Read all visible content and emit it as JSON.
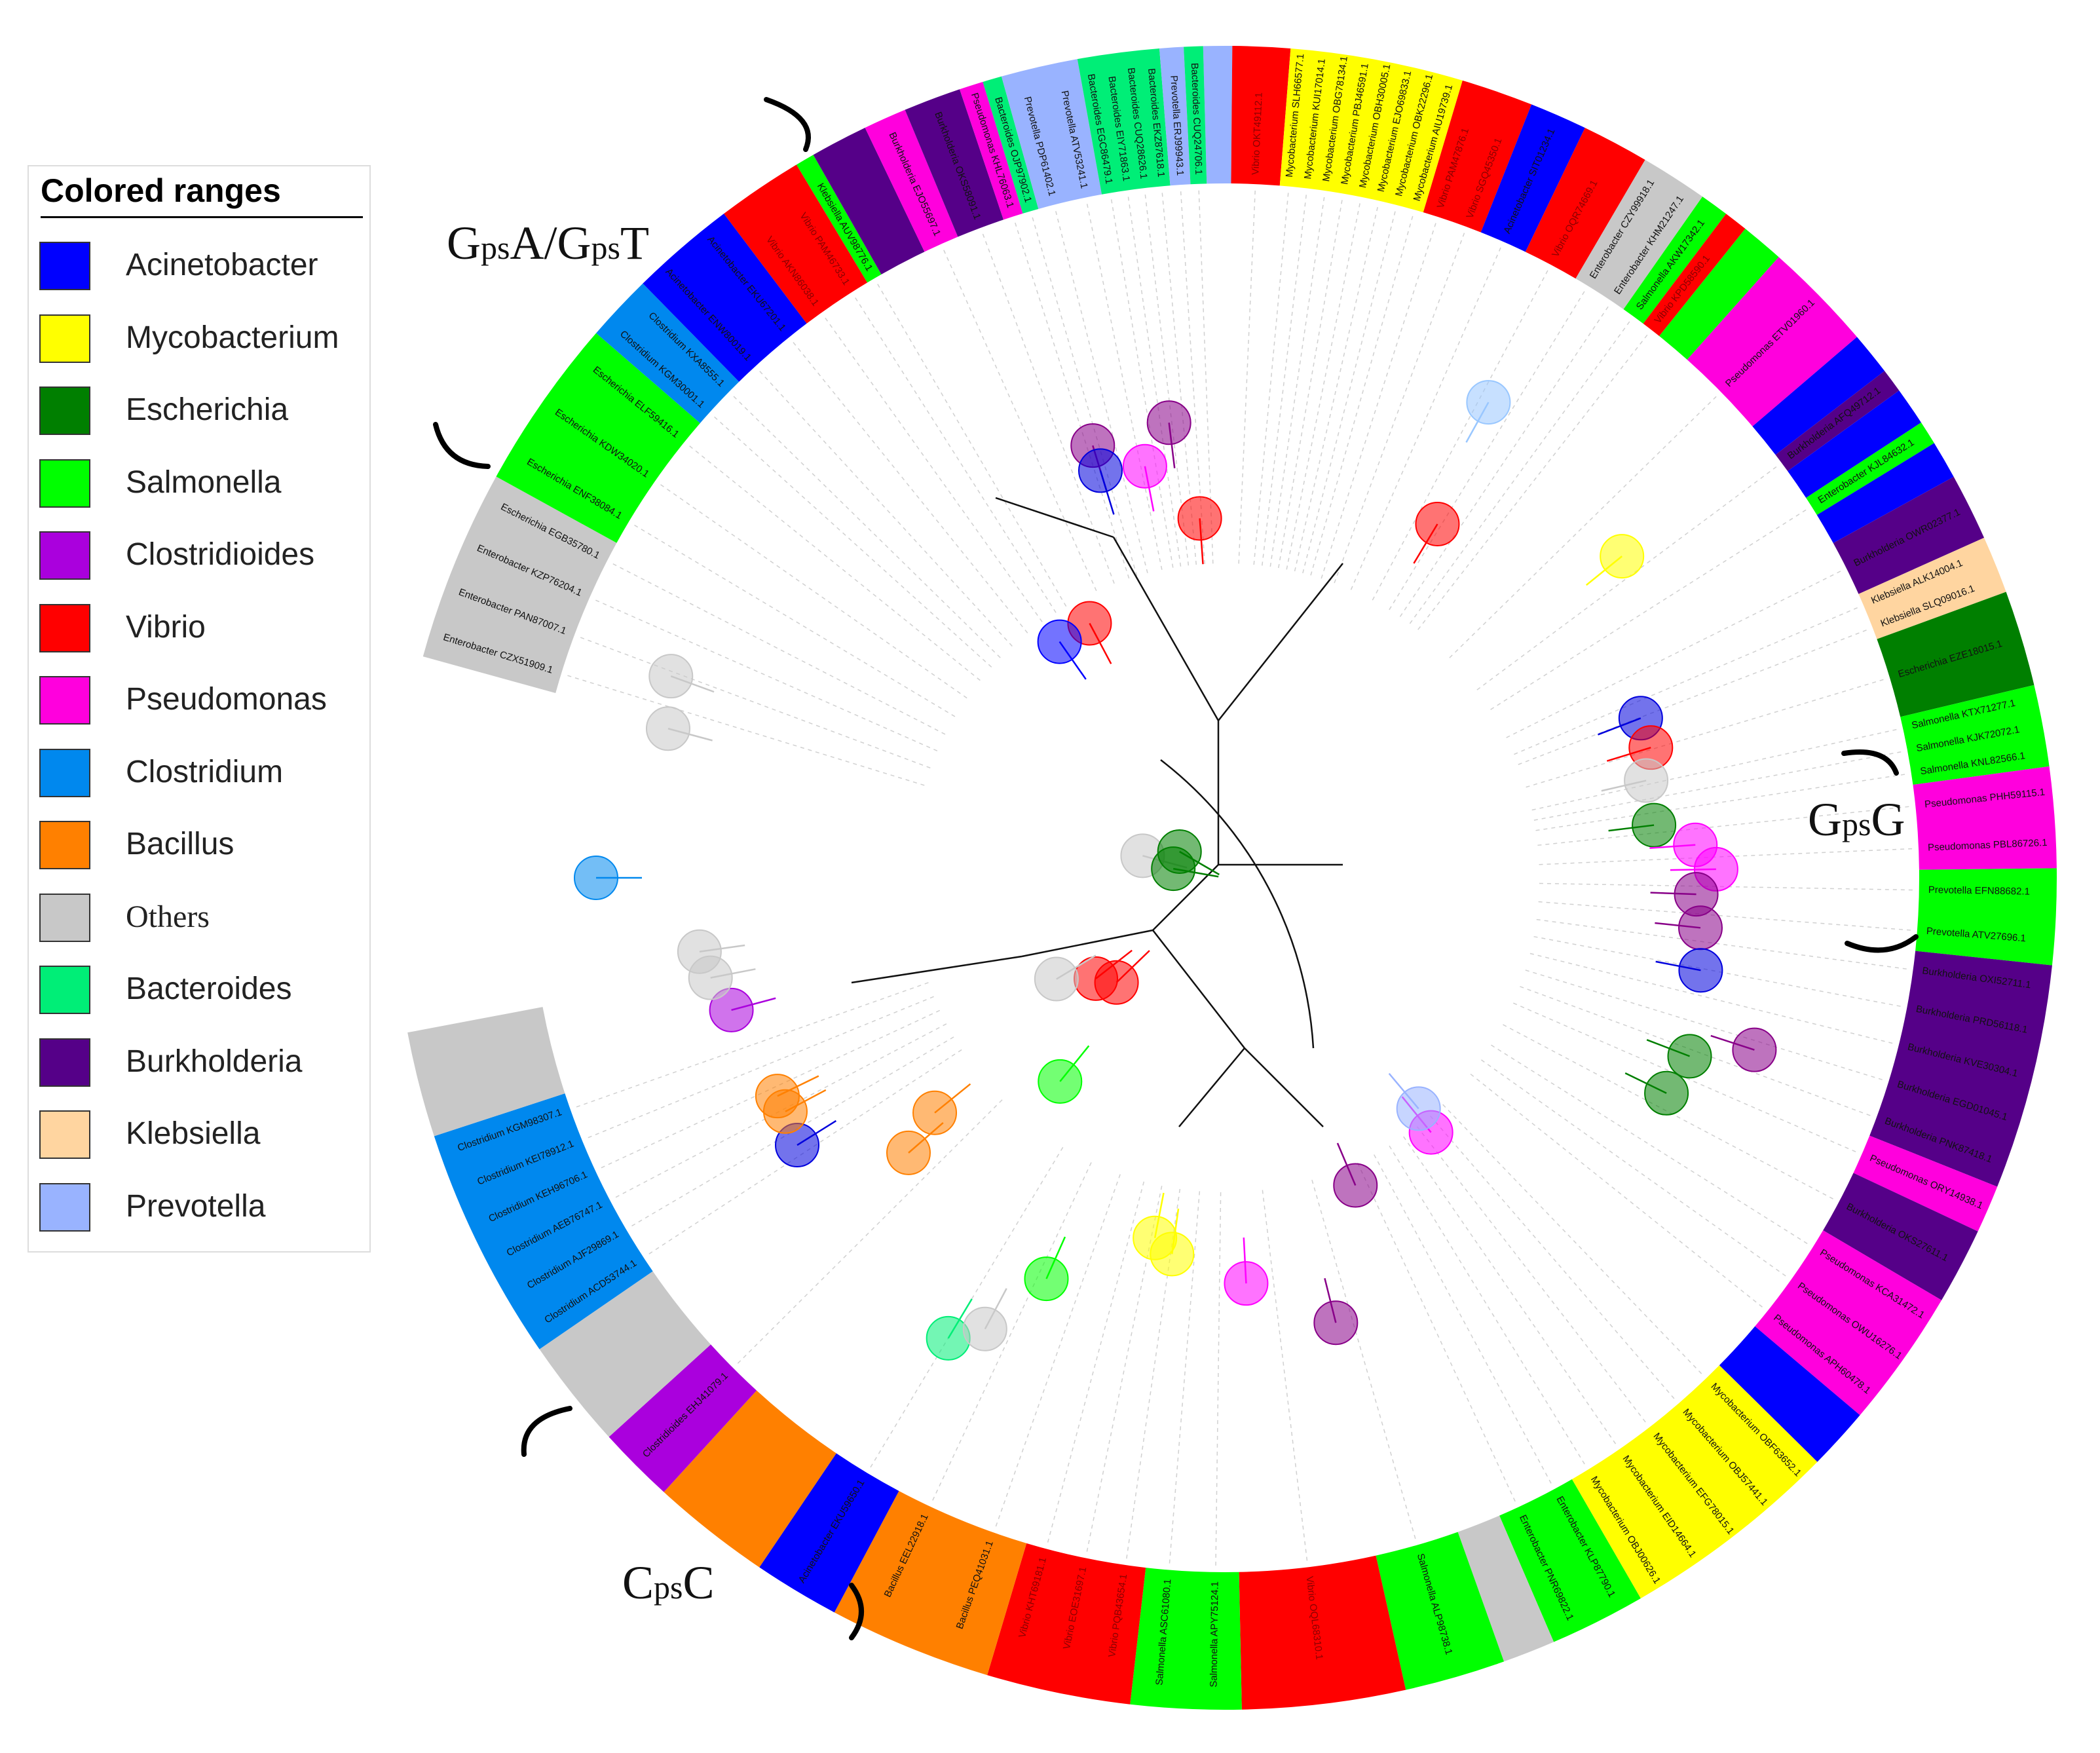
{
  "legend": {
    "title": "Colored ranges",
    "items": [
      {
        "label": "Acinetobacter",
        "color": "#0000ff"
      },
      {
        "label": "Mycobacterium",
        "color": "#ffff00"
      },
      {
        "label": "Escherichia",
        "color": "#007f00"
      },
      {
        "label": "Salmonella",
        "color": "#00ff00"
      },
      {
        "label": "Clostridioides",
        "color": "#aa00dd"
      },
      {
        "label": "Vibrio",
        "color": "#ff0000"
      },
      {
        "label": "Pseudomonas",
        "color": "#ff00dd"
      },
      {
        "label": "Clostridium",
        "color": "#0088ee"
      },
      {
        "label": "Bacillus",
        "color": "#ff8000"
      },
      {
        "label": "Others",
        "color": "#c8c8c8"
      },
      {
        "label": "Bacteroides",
        "color": "#00ee77"
      },
      {
        "label": "Burkholderia",
        "color": "#550088"
      },
      {
        "label": "Klebsiella",
        "color": "#ffd5a0"
      },
      {
        "label": "Prevotella",
        "color": "#99b3ff"
      }
    ]
  },
  "groups": {
    "gpsA_gpsT": {
      "main1": "G",
      "sub1": "ps",
      "main2": "A/G",
      "sub2": "ps",
      "main3": "T"
    },
    "gpsG": {
      "main1": "G",
      "sub1": "ps",
      "main2": "G"
    },
    "cpsC": {
      "main1": "C",
      "sub1": "ps",
      "main2": "C"
    }
  },
  "ring": [
    {
      "genus": "Prevotella",
      "color": "#99b3ff",
      "span": 1.2,
      "labels": []
    },
    {
      "genus": "Vibrio",
      "color": "#ff0000",
      "span": 2.4,
      "labels": [
        "Vibrio OKT49112.1"
      ]
    },
    {
      "genus": "Mycobacterium",
      "color": "#ffff00",
      "span": 7.2,
      "labels": [
        "Mycobacterium SLH66577.1",
        "Mycobacterium KUI17014.1",
        "Mycobacterium OBG78134.1",
        "Mycobacterium PBJ46591.1",
        "Mycobacterium OBH30005.1",
        "Mycobacterium EJO69833.1",
        "Mycobacterium OBK22296.1",
        "Mycobacterium AIU19739.1"
      ]
    },
    {
      "genus": "Vibrio",
      "color": "#ff0000",
      "span": 3.0,
      "labels": [
        "Vibrio PAM47876.1",
        "Vibrio SGQ45350.1"
      ]
    },
    {
      "genus": "Acinetobacter",
      "color": "#0000ff",
      "span": 2.4,
      "labels": [
        "Acinetobacter SIT01234.1"
      ]
    },
    {
      "genus": "Vibrio",
      "color": "#ff0000",
      "span": 2.8,
      "labels": [
        "Vibrio OQR74669.1"
      ]
    },
    {
      "genus": "Others",
      "color": "#c8c8c8",
      "span": 2.8,
      "labels": [
        "Enterobacter CZY99918.1",
        "Enterobacter KHM21247.1"
      ]
    },
    {
      "genus": "Salmonella",
      "color": "#00ff00",
      "span": 1.2,
      "labels": [
        "Salmonella AKW17342.1"
      ]
    },
    {
      "genus": "Vibrio",
      "color": "#ff0000",
      "span": 1.0,
      "labels": [
        "Vibrio KPD58590.1"
      ]
    },
    {
      "genus": "Salmonella",
      "color": "#00ff00",
      "span": 1.8,
      "labels": []
    },
    {
      "genus": "Pseudomonas",
      "color": "#ff00dd",
      "span": 4.6,
      "labels": [
        "Pseudomonas ETV01960.1"
      ]
    },
    {
      "genus": "Acinetobacter",
      "color": "#0000ff",
      "span": 1.8,
      "labels": []
    },
    {
      "genus": "Burkholderia",
      "color": "#550088",
      "span": 1.0,
      "labels": [
        "Burkholderia AFQ49712.1"
      ]
    },
    {
      "genus": "Acinetobacter",
      "color": "#0000ff",
      "span": 1.6,
      "labels": []
    },
    {
      "genus": "Salmonella",
      "color": "#00ff00",
      "span": 1.0,
      "labels": [
        "Enterobacter KJL84632.1"
      ]
    },
    {
      "genus": "Acinetobacter",
      "color": "#0000ff",
      "span": 1.6,
      "labels": []
    },
    {
      "genus": "Burkholderia",
      "color": "#550088",
      "span": 2.8,
      "labels": [
        "Burkholderia OWR02377.1"
      ]
    },
    {
      "genus": "Klebsiella",
      "color": "#ffd5a0",
      "span": 2.4,
      "labels": [
        "Klebsiella ALK14004.1",
        "Klebsiella SLQ09016.1"
      ]
    },
    {
      "genus": "Escherichia",
      "color": "#007f00",
      "span": 4.0,
      "labels": [
        "Escherichia EZE18015.1"
      ]
    },
    {
      "genus": "Salmonella",
      "color": "#00ff00",
      "span": 3.4,
      "labels": [
        "Salmonella KTX71277.1",
        "Salmonella KJK72072.1",
        "Salmonella KNL82566.1"
      ]
    },
    {
      "genus": "Pseudomonas",
      "color": "#ff00dd",
      "span": 4.2,
      "labels": [
        "Pseudomonas PHH59115.1",
        "Pseudomonas PBL86726.1"
      ]
    },
    {
      "genus": "Salmonella",
      "color": "#00ff00",
      "span": 4.0,
      "labels": [
        "Prevotella EFN88682.1",
        "Prevotella ATV27696.1"
      ]
    },
    {
      "genus": "Burkholderia",
      "color": "#550088",
      "span": 9.4,
      "labels": [
        "Burkholderia OXI52711.1",
        "Burkholderia PRD56118.1",
        "Burkholderia KVE30304.1",
        "Burkholderia EGD01045.1",
        "Burkholderia PNK87418.1"
      ]
    },
    {
      "genus": "Pseudomonas",
      "color": "#ff00dd",
      "span": 2.0,
      "labels": [
        "Pseudomonas ORY14938.1"
      ]
    },
    {
      "genus": "Burkholderia",
      "color": "#550088",
      "span": 3.2,
      "labels": [
        "Burkholderia OKS27611.1"
      ]
    },
    {
      "genus": "Pseudomonas",
      "color": "#ff00dd",
      "span": 5.8,
      "labels": [
        "Pseudomonas KCA31472.1",
        "Pseudomonas OWU16276.1",
        "Pseudomonas APH60478.1"
      ]
    },
    {
      "genus": "Acinetobacter",
      "color": "#0000ff",
      "span": 2.6,
      "labels": []
    },
    {
      "genus": "Mycobacterium",
      "color": "#ffff00",
      "span": 9.2,
      "labels": [
        "Mycobacterium OBF63652.1",
        "Mycobacterium OBJ57441.1",
        "Mycobacterium EFG78015.1",
        "Mycobacterium EID14664.1",
        "Mycobacterium OBJ00626.1"
      ]
    },
    {
      "genus": "Salmonella",
      "color": "#00ff00",
      "span": 4.0,
      "labels": [
        "Enterobacter KLP87790.1",
        "Enterobacter PNR69822.1"
      ]
    },
    {
      "genus": "Others",
      "color": "#c8c8c8",
      "span": 2.2,
      "labels": []
    },
    {
      "genus": "Salmonella",
      "color": "#00ff00",
      "span": 4.2,
      "labels": [
        "Salmonella ALP98738.1"
      ]
    },
    {
      "genus": "Vibrio",
      "color": "#ff0000",
      "span": 6.8,
      "labels": [
        "Vibrio OQL68310.1"
      ]
    },
    {
      "genus": "Salmonella",
      "color": "#00ff00",
      "span": 4.6,
      "labels": [
        "Salmonella APY75124.1",
        "Salmonella ASC61080.1"
      ]
    },
    {
      "genus": "Vibrio",
      "color": "#ff0000",
      "span": 6.0,
      "labels": [
        "Vibrio PQB43654.1",
        "Vibrio EOE31697.1",
        "Vibrio KHT69181.1"
      ]
    },
    {
      "genus": "Bacillus",
      "color": "#ff8000",
      "span": 6.8,
      "labels": [
        "Bacillus PEQ41031.1",
        "Bacillus EEL22918.1"
      ]
    },
    {
      "genus": "Acinetobacter",
      "color": "#0000ff",
      "span": 3.6,
      "labels": [
        "Acinetobacter EKU59650.1"
      ]
    },
    {
      "genus": "Bacillus",
      "color": "#ff8000",
      "span": 5.0,
      "labels": []
    },
    {
      "genus": "Clostridioides",
      "color": "#aa00dd",
      "span": 3.2,
      "labels": [
        "Clostridioides EHJ41079.1"
      ]
    },
    {
      "genus": "Others",
      "color": "#c8c8c8",
      "span": 4.6,
      "labels": []
    },
    {
      "genus": "Clostridium",
      "color": "#0088ee",
      "span": 9.8,
      "labels": [
        "Clostridium ACD53744.1",
        "Clostridium AJF29869.1",
        "Clostridium AEB76747.1",
        "Clostridium KEH96706.1",
        "Clostridium KEI78912.1",
        "Clostridium KGM98307.1"
      ]
    },
    {
      "genus": "Others",
      "color": "#c8c8c8",
      "span": 4.4,
      "labels": []
    },
    {
      "genus": "GAP",
      "color": "",
      "span": 15.6,
      "labels": []
    },
    {
      "genus": "Others",
      "color": "#c8c8c8",
      "span": 8.0,
      "labels": [
        "Enterobacter CZX51909.1",
        "Enterobacter PAN87007.1",
        "Enterobacter KZP76204.1",
        "Escherichia EGB35780.1"
      ]
    },
    {
      "genus": "Salmonella",
      "color": "#00ff00",
      "span": 7.2,
      "labels": [
        "Escherichia ENF38084.1",
        "Escherichia KDW34020.1",
        "Escherichia ELF59416.1"
      ]
    },
    {
      "genus": "Clostridium",
      "color": "#0088ee",
      "span": 2.8,
      "labels": [
        "Clostridium KGM30001.1",
        "Clostridium KXA8555.1"
      ]
    },
    {
      "genus": "Acinetobacter",
      "color": "#0000ff",
      "span": 4.4,
      "labels": [
        "Acinetobacter ENW80019.1",
        "Acinetobacter EKU67201.1"
      ]
    },
    {
      "genus": "Vibrio",
      "color": "#ff0000",
      "span": 3.6,
      "labels": [
        "Vibrio AKN86038.1",
        "Vibrio PAM46733.1"
      ]
    },
    {
      "genus": "Salmonella",
      "color": "#00ff00",
      "span": 0.8,
      "labels": [
        "Klebsiella AUV98776.1"
      ]
    },
    {
      "genus": "Burkholderia",
      "color": "#550088",
      "span": 2.4,
      "labels": []
    },
    {
      "genus": "Pseudomonas",
      "color": "#ff00dd",
      "span": 1.8,
      "labels": [
        "Burkholderia EJO55697.1"
      ]
    },
    {
      "genus": "Burkholderia",
      "color": "#550088",
      "span": 2.4,
      "labels": [
        "Burkholderia OKS58091.1"
      ]
    },
    {
      "genus": "Pseudomonas",
      "color": "#ff00dd",
      "span": 1.0,
      "labels": [
        "Pseudomonas KHL76063.1"
      ]
    },
    {
      "genus": "Bacteroides",
      "color": "#00ee77",
      "span": 0.8,
      "labels": [
        "Bacteroides OJP97902.1"
      ]
    },
    {
      "genus": "Prevotella",
      "color": "#99b3ff",
      "span": 3.2,
      "labels": [
        "Prevotella PDP61402.1",
        "Prevotella ATV53241.1"
      ]
    },
    {
      "genus": "Bacteroides",
      "color": "#00ee77",
      "span": 3.4,
      "labels": [
        "Bacteroides EGC86479.1",
        "Bacteroides EIY71863.1",
        "Bacteroides CUQ28626.1",
        "Bacteroides EKZ87618.1"
      ]
    },
    {
      "genus": "Prevotella",
      "color": "#99b3ff",
      "span": 1.0,
      "labels": [
        "Prevotella ERJ99943.1"
      ]
    },
    {
      "genus": "Bacteroides",
      "color": "#00ee77",
      "span": 0.8,
      "labels": [
        "Bacteroides CUQ24706.1"
      ]
    }
  ],
  "nodes": [
    {
      "color": "#99c7ff",
      "angle": 29,
      "r": 0.83
    },
    {
      "color": "#880088",
      "angle": -7,
      "r": 0.7
    },
    {
      "color": "#ff00ff",
      "angle": -11,
      "r": 0.64
    },
    {
      "color": "#880088",
      "angle": -17,
      "r": 0.69
    },
    {
      "color": "#ff0000",
      "angle": -28,
      "r": 0.44
    },
    {
      "color": "#0000ff",
      "angle": -35,
      "r": 0.44
    },
    {
      "color": "#ff0000",
      "angle": 31,
      "r": 0.63
    },
    {
      "color": "#ffff00",
      "angle": 51,
      "r": 0.78
    },
    {
      "color": "#0000dd",
      "angle": 69,
      "r": 0.68
    },
    {
      "color": "#ff0000",
      "angle": 73,
      "r": 0.68
    },
    {
      "color": "#c8c8c8",
      "angle": 77,
      "r": 0.66
    },
    {
      "color": "#007f00",
      "angle": 83,
      "r": 0.66
    },
    {
      "color": "#ff00ff",
      "angle": 86,
      "r": 0.72
    },
    {
      "color": "#ff00ff",
      "angle": 89,
      "r": 0.75
    },
    {
      "color": "#880088",
      "angle": 92,
      "r": 0.72
    },
    {
      "color": "#880088",
      "angle": 96,
      "r": 0.73
    },
    {
      "color": "#0000dd",
      "angle": 101,
      "r": 0.74
    },
    {
      "color": "#880088",
      "angle": 108,
      "r": 0.85
    },
    {
      "color": "#007f00",
      "angle": 111,
      "r": 0.76
    },
    {
      "color": "#007f00",
      "angle": 116,
      "r": 0.75
    },
    {
      "color": "#ff00ff",
      "angle": 141,
      "r": 0.5
    },
    {
      "color": "#99b3ff",
      "angle": 140,
      "r": 0.46
    },
    {
      "color": "#880088",
      "angle": 157,
      "r": 0.51
    },
    {
      "color": "#880088",
      "angle": 166,
      "r": 0.7
    },
    {
      "color": "#ff00ff",
      "angle": 177,
      "r": 0.62
    },
    {
      "color": "#ffff00",
      "angle": 188,
      "r": 0.58
    },
    {
      "color": "#ffff00",
      "angle": 191,
      "r": 0.56
    },
    {
      "color": "#00ff00",
      "angle": 204,
      "r": 0.67
    },
    {
      "color": "#00ee77",
      "angle": 211,
      "r": 0.82
    },
    {
      "color": "#c8c8c8",
      "angle": 208,
      "r": 0.78
    },
    {
      "color": "#ff0000",
      "angle": 226,
      "r": 0.23
    },
    {
      "color": "#ff0000",
      "angle": 232,
      "r": 0.25
    },
    {
      "color": "#c8c8c8",
      "angle": 239,
      "r": 0.3
    },
    {
      "color": "#00ff00",
      "angle": 219,
      "r": 0.4
    },
    {
      "color": "#ff8000",
      "angle": 231,
      "r": 0.57
    },
    {
      "color": "#ff8000",
      "angle": 229,
      "r": 0.64
    },
    {
      "color": "#0000dd",
      "angle": 238,
      "r": 0.77
    },
    {
      "color": "#ff8000",
      "angle": 242,
      "r": 0.76
    },
    {
      "color": "#ff8000",
      "angle": 244,
      "r": 0.76
    },
    {
      "color": "#aa00dd",
      "angle": 255,
      "r": 0.78
    },
    {
      "color": "#c8c8c8",
      "angle": 259,
      "r": 0.8
    },
    {
      "color": "#c8c8c8",
      "angle": 262,
      "r": 0.81
    },
    {
      "color": "#0088ee",
      "angle": 270,
      "r": 0.96
    },
    {
      "color": "#c8c8c8",
      "angle": 285,
      "r": 0.88
    },
    {
      "color": "#c8c8c8",
      "angle": 290,
      "r": 0.9
    },
    {
      "color": "#c8c8c8",
      "angle": 285,
      "r": 0.13
    },
    {
      "color": "#007f00",
      "angle": 300,
      "r": 0.08
    },
    {
      "color": "#007f00",
      "angle": 280,
      "r": 0.08
    },
    {
      "color": "#0000dd",
      "angle": 343,
      "r": 0.65
    },
    {
      "color": "#ff0000",
      "angle": 356,
      "r": 0.55
    }
  ]
}
